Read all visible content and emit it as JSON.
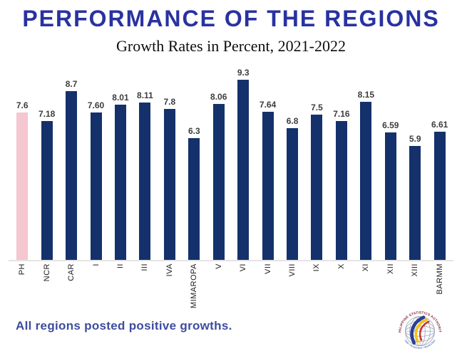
{
  "title": "PERFORMANCE OF THE REGIONS",
  "subtitle": "Growth Rates in Percent, 2021-2022",
  "footer_note": "All regions posted positive growths.",
  "logo": {
    "org": "PHILIPPINE STATISTICS AUTHORITY",
    "tagline": "Solid • Responsive • World-Class"
  },
  "colors": {
    "title_blue": "#2832a0",
    "bar_navy": "#14316b",
    "highlight_pink": "#f4c7d1",
    "footer_blue": "#3e4c9f",
    "value_label_gray": "#3d3d3d",
    "axis_gray": "#e4e4e4"
  },
  "chart_data": {
    "type": "bar",
    "title": "PERFORMANCE OF THE REGIONS",
    "subtitle": "Growth Rates in Percent, 2021-2022",
    "xlabel": "",
    "ylabel": "",
    "ylim": [
      0,
      10
    ],
    "grid": false,
    "legend": "none",
    "categories": [
      "PH",
      "NCR",
      "CAR",
      "I",
      "II",
      "III",
      "IVA",
      "MIMAROPA",
      "V",
      "VI",
      "VII",
      "VIII",
      "IX",
      "X",
      "XI",
      "XII",
      "XIII",
      "BARMM"
    ],
    "values": [
      7.6,
      7.18,
      8.7,
      7.6,
      8.01,
      8.11,
      7.8,
      6.3,
      8.06,
      9.3,
      7.64,
      6.8,
      7.5,
      7.16,
      8.15,
      6.59,
      5.9,
      6.61
    ],
    "value_labels": [
      "7.6",
      "7.18",
      "8.7",
      "7.60",
      "8.01",
      "8.11",
      "7.8",
      "6.3",
      "8.06",
      "9.3",
      "7.64",
      "6.8",
      "7.5",
      "7.16",
      "8.15",
      "6.59",
      "5.9",
      "6.61"
    ],
    "highlight_index": 0,
    "bar_color": "#14316b",
    "highlight_color": "#f4c7d1"
  }
}
